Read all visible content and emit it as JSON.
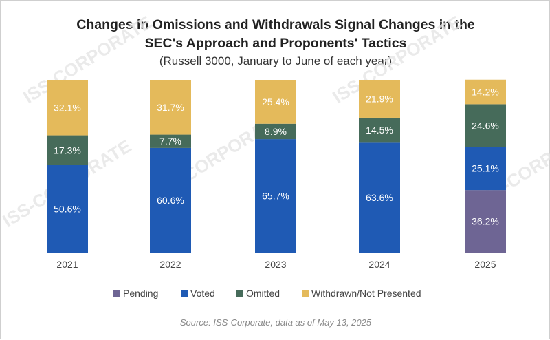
{
  "title_line1": "Changes in Omissions and Withdrawals Signal Changes in the",
  "title_line2": "SEC's Approach and Proponents' Tactics",
  "subtitle": "(Russell 3000, January to June of each year)",
  "source": "Source: ISS-Corporate, data as of May 13, 2025",
  "colors": {
    "Pending": "#6e6594",
    "Voted": "#1f5ab4",
    "Omitted": "#466b5a",
    "Withdrawn/Not Presented": "#e4ba5b"
  },
  "chart_data": {
    "type": "bar",
    "stacked": true,
    "percent": true,
    "categories": [
      "2021",
      "2022",
      "2023",
      "2024",
      "2025"
    ],
    "series": [
      {
        "name": "Pending",
        "values": [
          0,
          0,
          0,
          0,
          36.2
        ],
        "labels": [
          "",
          "",
          "",
          "",
          "36.2%"
        ]
      },
      {
        "name": "Voted",
        "values": [
          50.6,
          60.6,
          65.7,
          63.6,
          25.1
        ],
        "labels": [
          "50.6%",
          "60.6%",
          "65.7%",
          "63.6%",
          "25.1%"
        ]
      },
      {
        "name": "Omitted",
        "values": [
          17.3,
          7.7,
          8.9,
          14.5,
          24.6
        ],
        "labels": [
          "17.3%",
          "7.7%",
          "8.9%",
          "14.5%",
          "24.6%"
        ]
      },
      {
        "name": "Withdrawn/Not Presented",
        "values": [
          32.1,
          31.7,
          25.4,
          21.9,
          14.2
        ],
        "labels": [
          "32.1%",
          "31.7%",
          "25.4%",
          "21.9%",
          "14.2%"
        ]
      }
    ],
    "ylim": [
      0,
      100
    ],
    "legend_position": "bottom",
    "watermark": "ISS-CORPORATE"
  }
}
